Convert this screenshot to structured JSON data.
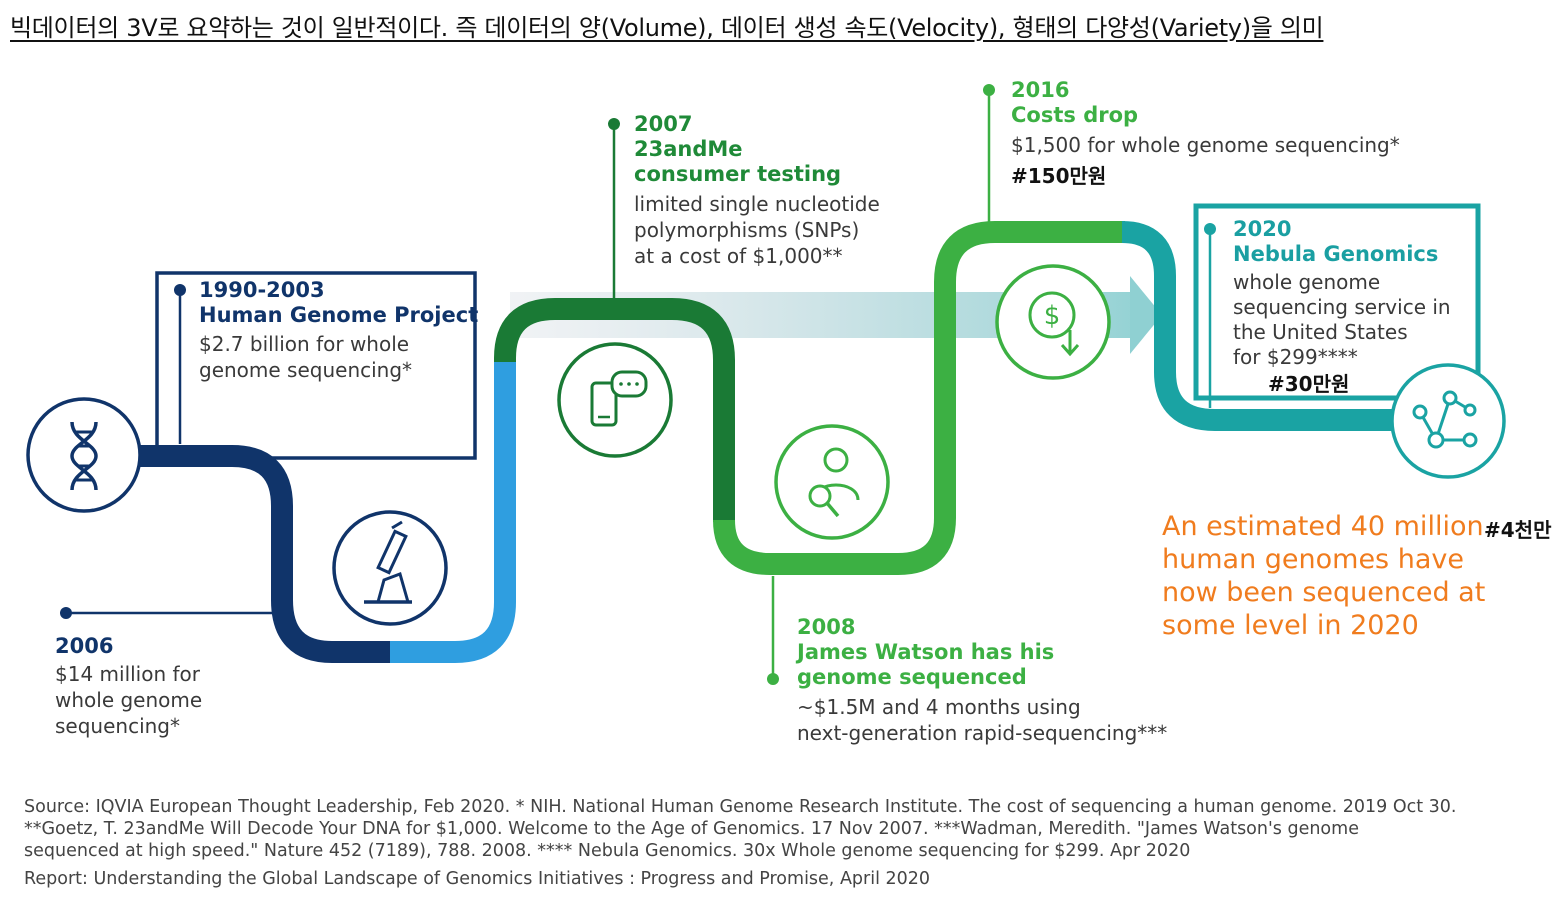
{
  "header": {
    "korean_caption": "빅데이터의 3V로 요약하는 것이 일반적이다. 즉 데이터의 양(Volume), 데이터 생성 속도(Velocity), 형태의 다양성(Variety)을 의미"
  },
  "milestones": {
    "m1990": {
      "year": "1990-2003",
      "title": "Human Genome Project",
      "desc": [
        "$2.7 billion for whole",
        "genome sequencing*"
      ]
    },
    "m2006": {
      "year": "2006",
      "desc": [
        "$14 million for",
        "whole genome",
        "sequencing*"
      ]
    },
    "m2007": {
      "year": "2007",
      "title": [
        "23andMe",
        "consumer testing"
      ],
      "desc": [
        "limited single nucleotide",
        "polymorphisms (SNPs)",
        "at a cost of $1,000**"
      ]
    },
    "m2008": {
      "year": "2008",
      "title": [
        "James Watson has his",
        "genome sequenced"
      ],
      "desc": [
        "~$1.5M and 4 months using",
        "next-generation rapid-sequencing***"
      ]
    },
    "m2016": {
      "year": "2016",
      "title": "Costs drop",
      "desc": "$1,500 for whole genome sequencing*",
      "note": "#150만원"
    },
    "m2020": {
      "year": "2020",
      "title": "Nebula Genomics",
      "desc": [
        "whole genome",
        "sequencing service in",
        "the United States",
        "for $299****"
      ],
      "note": "#30만원"
    }
  },
  "estimate": {
    "lines": [
      "An estimated 40 million",
      "human genomes have",
      "now been sequenced at",
      "some level in 2020"
    ],
    "note": "#4천만"
  },
  "footer": {
    "source": [
      "Source: IQVIA European Thought Leadership, Feb 2020. * NIH. National Human Genome Research Institute. The cost of sequencing a human genome. 2019 Oct 30.",
      "**Goetz, T. 23andMe Will Decode Your DNA for $1,000. Welcome to the Age of Genomics. 17 Nov 2007. ***Wadman, Meredith. \"James Watson's genome",
      "sequenced at high speed.\" Nature 452 (7189), 788. 2008. **** Nebula Genomics. 30x Whole genome sequencing for $299. Apr 2020"
    ],
    "report": "Report: Understanding the Global Landscape of Genomics Initiatives : Progress and Promise, April 2020"
  },
  "icons": [
    "dna-icon",
    "microscope-icon",
    "phone-chat-icon",
    "person-search-icon",
    "dollar-down-icon",
    "network-icon"
  ],
  "colors": {
    "navy": "#10346a",
    "blue": "#2f9ee0",
    "dark_green": "#1a7a35",
    "green": "#3cb043",
    "teal": "#1aa3a3",
    "orange": "#f07c1e"
  }
}
